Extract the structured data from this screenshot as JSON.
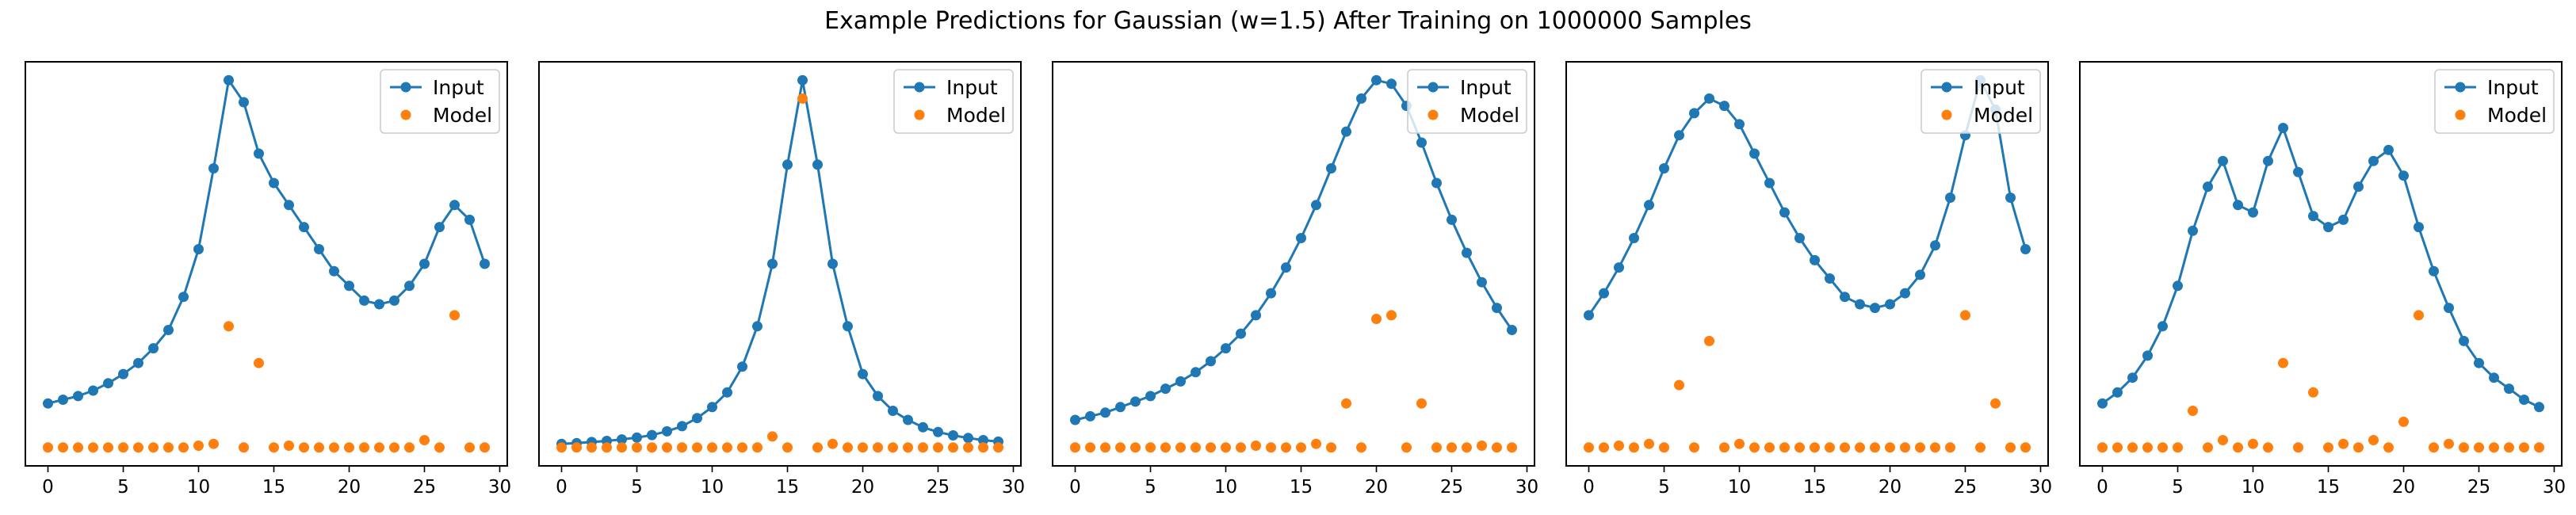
{
  "figure": {
    "title": "Example Predictions for Gaussian (w=1.5) After Training on 1000000 Samples"
  },
  "colors": {
    "input": "#1f77b4",
    "model": "#ff7f0e"
  },
  "chart_data": [
    {
      "type": "line",
      "x": [
        0,
        1,
        2,
        3,
        4,
        5,
        6,
        7,
        8,
        9,
        10,
        11,
        12,
        13,
        14,
        15,
        16,
        17,
        18,
        19,
        20,
        21,
        22,
        23,
        24,
        25,
        26,
        27,
        28,
        29
      ],
      "xticks": [
        0,
        5,
        10,
        15,
        20,
        25,
        30
      ],
      "xlim": [
        -1.5,
        30.5
      ],
      "ylim": [
        -0.05,
        1.05
      ],
      "grid": false,
      "legend": "top-right",
      "series": [
        {
          "name": "Input",
          "kind": "line-marker",
          "color": "#1f77b4",
          "values": [
            0.12,
            0.13,
            0.14,
            0.155,
            0.175,
            0.2,
            0.23,
            0.27,
            0.32,
            0.41,
            0.54,
            0.76,
            1.0,
            0.94,
            0.8,
            0.72,
            0.66,
            0.6,
            0.54,
            0.48,
            0.44,
            0.4,
            0.39,
            0.4,
            0.44,
            0.5,
            0.6,
            0.66,
            0.62,
            0.5
          ]
        },
        {
          "name": "Model",
          "kind": "scatter",
          "color": "#ff7f0e",
          "values": [
            0.0,
            0.0,
            0.0,
            0.0,
            0.0,
            0.0,
            0.0,
            0.0,
            0.0,
            0.0,
            0.005,
            0.01,
            0.33,
            0.0,
            0.23,
            0.0,
            0.005,
            0.0,
            0.0,
            0.0,
            0.0,
            0.0,
            0.0,
            0.0,
            0.0,
            0.02,
            0.0,
            0.36,
            0.0,
            0.0
          ]
        }
      ]
    },
    {
      "type": "line",
      "x": [
        0,
        1,
        2,
        3,
        4,
        5,
        6,
        7,
        8,
        9,
        10,
        11,
        12,
        13,
        14,
        15,
        16,
        17,
        18,
        19,
        20,
        21,
        22,
        23,
        24,
        25,
        26,
        27,
        28,
        29
      ],
      "xticks": [
        0,
        5,
        10,
        15,
        20,
        25,
        30
      ],
      "xlim": [
        -1.5,
        30.5
      ],
      "ylim": [
        -0.05,
        1.05
      ],
      "grid": false,
      "legend": "top-right",
      "series": [
        {
          "name": "Input",
          "kind": "line-marker",
          "color": "#1f77b4",
          "values": [
            0.01,
            0.012,
            0.015,
            0.018,
            0.022,
            0.027,
            0.034,
            0.044,
            0.058,
            0.08,
            0.11,
            0.15,
            0.22,
            0.33,
            0.5,
            0.77,
            1.0,
            0.77,
            0.5,
            0.33,
            0.2,
            0.14,
            0.1,
            0.075,
            0.055,
            0.042,
            0.033,
            0.026,
            0.02,
            0.016
          ]
        },
        {
          "name": "Model",
          "kind": "scatter",
          "color": "#ff7f0e",
          "values": [
            0.0,
            0.0,
            0.0,
            0.0,
            0.0,
            0.0,
            0.0,
            0.0,
            0.0,
            0.0,
            0.0,
            0.0,
            0.0,
            0.0,
            0.03,
            0.0,
            0.95,
            0.0,
            0.01,
            0.0,
            0.0,
            0.0,
            0.0,
            0.0,
            0.0,
            0.0,
            0.0,
            0.0,
            0.0,
            0.0
          ]
        }
      ]
    },
    {
      "type": "line",
      "x": [
        0,
        1,
        2,
        3,
        4,
        5,
        6,
        7,
        8,
        9,
        10,
        11,
        12,
        13,
        14,
        15,
        16,
        17,
        18,
        19,
        20,
        21,
        22,
        23,
        24,
        25,
        26,
        27,
        28,
        29
      ],
      "xticks": [
        0,
        5,
        10,
        15,
        20,
        25,
        30
      ],
      "xlim": [
        -1.5,
        30.5
      ],
      "ylim": [
        -0.05,
        1.05
      ],
      "grid": false,
      "legend": "top-right",
      "series": [
        {
          "name": "Input",
          "kind": "line-marker",
          "color": "#1f77b4",
          "values": [
            0.075,
            0.085,
            0.095,
            0.11,
            0.125,
            0.14,
            0.16,
            0.18,
            0.205,
            0.235,
            0.27,
            0.31,
            0.36,
            0.42,
            0.49,
            0.57,
            0.66,
            0.76,
            0.86,
            0.95,
            1.0,
            0.99,
            0.93,
            0.83,
            0.72,
            0.62,
            0.53,
            0.45,
            0.38,
            0.32
          ]
        },
        {
          "name": "Model",
          "kind": "scatter",
          "color": "#ff7f0e",
          "values": [
            0.0,
            0.0,
            0.0,
            0.0,
            0.0,
            0.0,
            0.0,
            0.0,
            0.0,
            0.0,
            0.0,
            0.0,
            0.005,
            0.0,
            0.0,
            0.0,
            0.01,
            0.0,
            0.12,
            0.0,
            0.35,
            0.36,
            0.0,
            0.12,
            0.0,
            0.0,
            0.0,
            0.005,
            0.0,
            0.0
          ]
        }
      ]
    },
    {
      "type": "line",
      "x": [
        0,
        1,
        2,
        3,
        4,
        5,
        6,
        7,
        8,
        9,
        10,
        11,
        12,
        13,
        14,
        15,
        16,
        17,
        18,
        19,
        20,
        21,
        22,
        23,
        24,
        25,
        26,
        27,
        28,
        29
      ],
      "xticks": [
        0,
        5,
        10,
        15,
        20,
        25,
        30
      ],
      "xlim": [
        -1.5,
        30.5
      ],
      "ylim": [
        -0.05,
        1.05
      ],
      "grid": false,
      "legend": "top-right",
      "series": [
        {
          "name": "Input",
          "kind": "line-marker",
          "color": "#1f77b4",
          "values": [
            0.36,
            0.42,
            0.49,
            0.57,
            0.66,
            0.76,
            0.85,
            0.91,
            0.95,
            0.93,
            0.88,
            0.8,
            0.72,
            0.64,
            0.57,
            0.51,
            0.46,
            0.41,
            0.39,
            0.38,
            0.39,
            0.42,
            0.47,
            0.55,
            0.68,
            0.85,
            1.0,
            0.92,
            0.68,
            0.54
          ]
        },
        {
          "name": "Model",
          "kind": "scatter",
          "color": "#ff7f0e",
          "values": [
            0.0,
            0.0,
            0.005,
            0.0,
            0.01,
            0.0,
            0.17,
            0.0,
            0.29,
            0.0,
            0.01,
            0.0,
            0.0,
            0.0,
            0.0,
            0.0,
            0.0,
            0.0,
            0.0,
            0.0,
            0.0,
            0.0,
            0.0,
            0.0,
            0.0,
            0.36,
            0.0,
            0.12,
            0.0,
            0.0
          ]
        }
      ]
    },
    {
      "type": "line",
      "x": [
        0,
        1,
        2,
        3,
        4,
        5,
        6,
        7,
        8,
        9,
        10,
        11,
        12,
        13,
        14,
        15,
        16,
        17,
        18,
        19,
        20,
        21,
        22,
        23,
        24,
        25,
        26,
        27,
        28,
        29
      ],
      "xticks": [
        0,
        5,
        10,
        15,
        20,
        25,
        30
      ],
      "xlim": [
        -1.5,
        30.5
      ],
      "ylim": [
        -0.05,
        1.05
      ],
      "grid": false,
      "legend": "top-right",
      "series": [
        {
          "name": "Input",
          "kind": "line-marker",
          "color": "#1f77b4",
          "values": [
            0.12,
            0.15,
            0.19,
            0.25,
            0.33,
            0.44,
            0.59,
            0.71,
            0.78,
            0.66,
            0.64,
            0.78,
            0.87,
            0.75,
            0.63,
            0.6,
            0.62,
            0.71,
            0.78,
            0.81,
            0.74,
            0.6,
            0.48,
            0.38,
            0.29,
            0.23,
            0.19,
            0.16,
            0.13,
            0.11
          ]
        },
        {
          "name": "Model",
          "kind": "scatter",
          "color": "#ff7f0e",
          "values": [
            0.0,
            0.0,
            0.0,
            0.0,
            0.0,
            0.0,
            0.1,
            0.0,
            0.02,
            0.0,
            0.01,
            0.0,
            0.23,
            0.0,
            0.15,
            0.0,
            0.01,
            0.0,
            0.02,
            0.0,
            0.07,
            0.36,
            0.0,
            0.01,
            0.0,
            0.0,
            0.0,
            0.0,
            0.0,
            0.0
          ]
        }
      ]
    }
  ]
}
